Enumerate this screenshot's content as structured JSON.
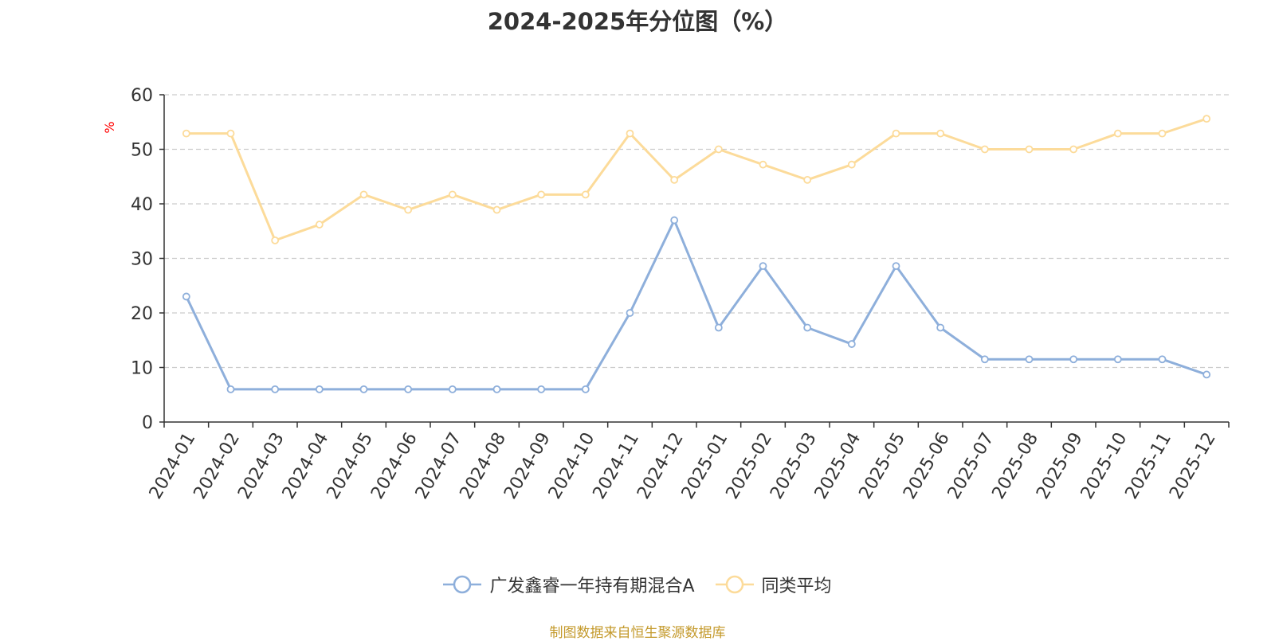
{
  "chart_data": {
    "type": "line",
    "title": "2024-2025年分位图（%）",
    "ylabel": "%",
    "xlabel": "",
    "ylim": [
      0,
      60
    ],
    "yticks": [
      0,
      10,
      20,
      30,
      40,
      50,
      60
    ],
    "grid": true,
    "legend_position": "bottom",
    "categories": [
      "2024-01",
      "2024-02",
      "2024-03",
      "2024-04",
      "2024-05",
      "2024-06",
      "2024-07",
      "2024-08",
      "2024-09",
      "2024-10",
      "2024-11",
      "2024-12",
      "2025-01",
      "2025-02",
      "2025-03",
      "2025-04",
      "2025-05",
      "2025-06",
      "2025-07",
      "2025-08",
      "2025-09",
      "2025-10",
      "2025-11",
      "2025-12"
    ],
    "series": [
      {
        "name": "广发鑫睿一年持有期混合A",
        "color": "#8eafdb",
        "values": [
          23,
          6,
          6,
          6,
          6,
          6,
          6,
          6,
          6,
          6,
          20,
          37,
          17.3,
          28.6,
          17.3,
          14.3,
          28.6,
          17.3,
          11.5,
          11.5,
          11.5,
          11.5,
          11.5,
          8.7
        ]
      },
      {
        "name": "同类平均",
        "color": "#fcdb9a",
        "values": [
          52.9,
          52.9,
          33.3,
          36.2,
          41.7,
          38.9,
          41.7,
          38.9,
          41.7,
          41.7,
          52.9,
          44.4,
          50,
          47.2,
          44.4,
          47.2,
          52.9,
          52.9,
          50,
          50,
          50,
          52.9,
          52.9,
          55.6
        ]
      }
    ]
  },
  "source_note": "制图数据来自恒生聚源数据库",
  "colors": {
    "title": "#333333",
    "axis": "#333333",
    "grid": "#cccccc",
    "ylabel": "#ff0000",
    "source": "#c49a2c"
  }
}
